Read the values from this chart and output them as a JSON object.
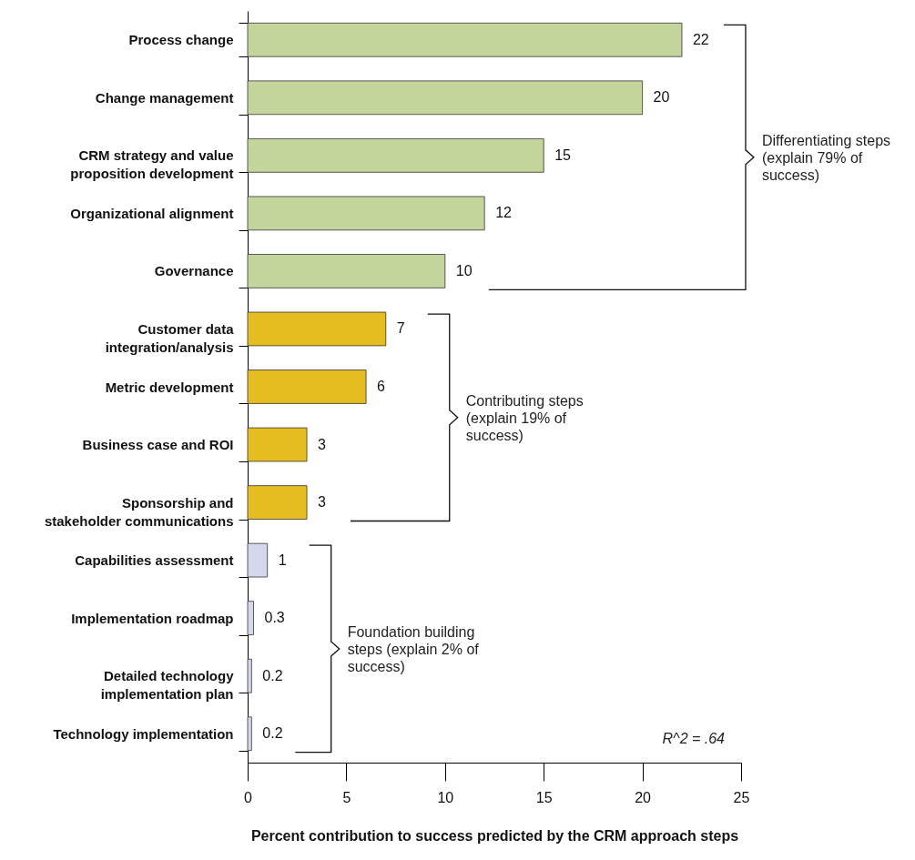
{
  "chart_data": {
    "type": "bar",
    "orientation": "horizontal",
    "categories": [
      "Process change",
      "Change management",
      "CRM strategy and value proposition development",
      "Organizational alignment",
      "Governance",
      "Customer data integration/analysis",
      "Metric development",
      "Business case and ROI",
      "Sponsorship and stakeholder communications",
      "Capabilities assessment",
      "Implementation roadmap",
      "Detailed technology implementation plan",
      "Technology implementation"
    ],
    "values": [
      22,
      20,
      15,
      12,
      10,
      7,
      6,
      3,
      3,
      1,
      0.3,
      0.2,
      0.2
    ],
    "colors": [
      "#c3d59b",
      "#c3d59b",
      "#c3d59b",
      "#c3d59b",
      "#c3d59b",
      "#e5bd20",
      "#e5bd20",
      "#e5bd20",
      "#e5bd20",
      "#d5d8ec",
      "#d5d8ec",
      "#d5d8ec",
      "#d5d8ec"
    ],
    "xlim": [
      0,
      25
    ],
    "xticks": [
      0,
      5,
      10,
      15,
      20,
      25
    ],
    "xlabel": "Percent contribution to success predicted by the CRM approach steps",
    "data_labels": true,
    "annotations": [
      "Differentiating steps (explain 79% of success)",
      "Contributing steps (explain 19% of success)",
      "Foundation building steps (explain 2% of success)",
      "R^2 = .64"
    ]
  }
}
